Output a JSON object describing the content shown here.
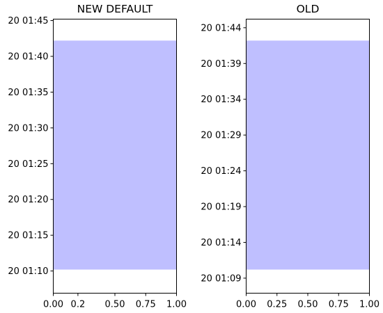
{
  "chart_data": [
    {
      "type": "area",
      "title": "NEW DEFAULT",
      "xlim": [
        0.0,
        1.0
      ],
      "x_ticks": [
        0.0,
        0.2,
        0.5,
        0.75,
        1.0
      ],
      "x_tick_labels": [
        "0.00",
        "0.2",
        "0.50",
        "0.75",
        "1.00"
      ],
      "y_tick_labels": [
        "20 01:10",
        "20 01:15",
        "20 01:20",
        "20 01:25",
        "20 01:30",
        "20 01:35",
        "20 01:40",
        "20 01:45"
      ],
      "y_tick_minutes": [
        10,
        15,
        20,
        25,
        30,
        35,
        40,
        45
      ],
      "ylim_minutes": [
        6.9,
        45.2
      ],
      "span": {
        "x_start": 0.0,
        "x_end": 1.0,
        "y_start_minutes": 10.2,
        "y_end_minutes": 42.2
      },
      "fill_color": "#bfbfff"
    },
    {
      "type": "area",
      "title": "OLD",
      "xlim": [
        0.0,
        1.0
      ],
      "x_ticks": [
        0.0,
        0.25,
        0.5,
        0.75,
        1.0
      ],
      "x_tick_labels": [
        "0.00",
        "0.25",
        "0.50",
        "0.75",
        "1.00"
      ],
      "y_tick_labels": [
        "20 01:09",
        "20 01:14",
        "20 01:19",
        "20 01:24",
        "20 01:29",
        "20 01:34",
        "20 01:39",
        "20 01:44"
      ],
      "y_tick_minutes": [
        9,
        14,
        19,
        24,
        29,
        34,
        39,
        44
      ],
      "ylim_minutes": [
        6.9,
        45.2
      ],
      "span": {
        "x_start": 0.0,
        "x_end": 1.0,
        "y_start_minutes": 10.2,
        "y_end_minutes": 42.2
      },
      "fill_color": "#bfbfff"
    }
  ]
}
